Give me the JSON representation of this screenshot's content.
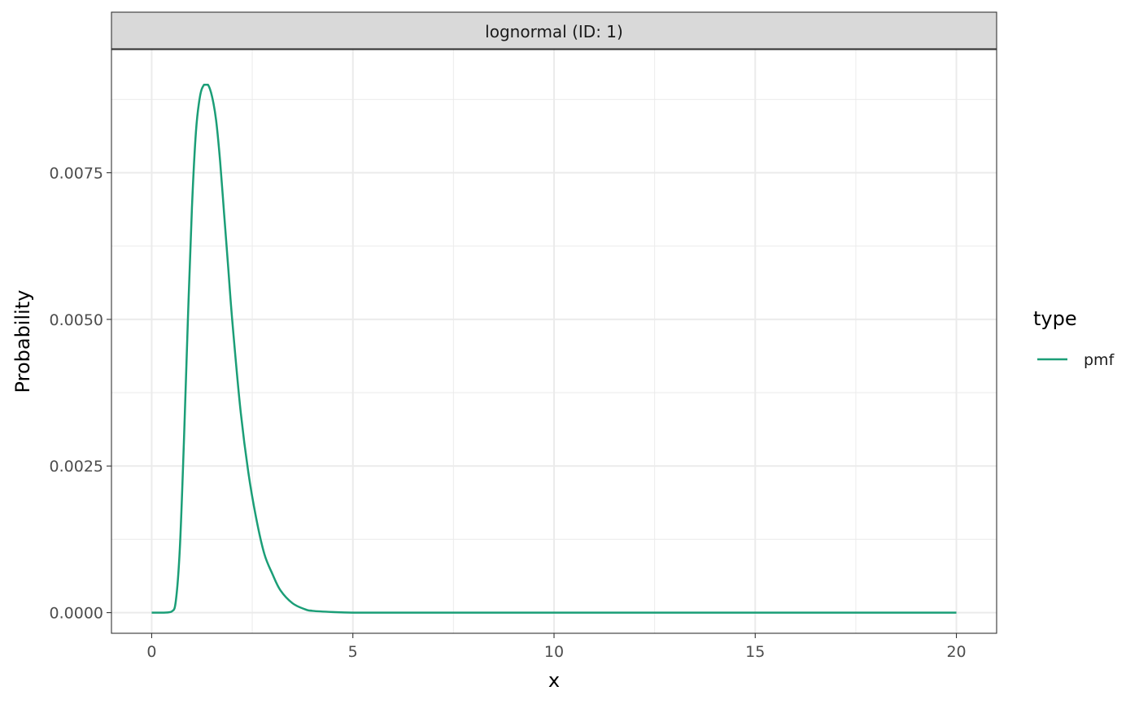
{
  "chart_data": {
    "type": "line",
    "facet_label": "lognormal (ID: 1)",
    "xlabel": "x",
    "ylabel": "Probability",
    "xlim": [
      -1,
      21
    ],
    "ylim": [
      -0.000352,
      0.0096
    ],
    "x_ticks": [
      0,
      5,
      10,
      15,
      20
    ],
    "x_tick_labels": [
      "0",
      "5",
      "10",
      "15",
      "20"
    ],
    "y_ticks": [
      0,
      0.0025,
      0.005,
      0.0075
    ],
    "y_tick_labels": [
      "0.0000",
      "0.0025",
      "0.0050",
      "0.0075"
    ],
    "x_minor": [
      2.5,
      7.5,
      12.5,
      17.5
    ],
    "y_minor": [
      0.00125,
      0.00375,
      0.00625,
      0.00875
    ],
    "grid": true,
    "legend": {
      "title": "type",
      "position": "right",
      "entries": [
        {
          "label": "pmf",
          "color": "#1b9e77"
        }
      ]
    },
    "series": [
      {
        "name": "pmf",
        "color": "#1b9e77",
        "x": [
          0,
          0.3,
          0.5,
          0.6,
          0.7,
          0.8,
          0.9,
          1.0,
          1.1,
          1.2,
          1.3,
          1.4,
          1.5,
          1.6,
          1.7,
          1.8,
          1.9,
          2.0,
          2.2,
          2.4,
          2.6,
          2.8,
          3.0,
          3.2,
          3.5,
          3.8,
          4.0,
          4.5,
          5.0,
          6,
          8,
          10,
          12,
          15,
          18,
          20
        ],
        "y": [
          0,
          0,
          2e-05,
          0.0002,
          0.0011,
          0.0029,
          0.005,
          0.0069,
          0.0082,
          0.0088,
          0.009,
          0.009,
          0.0088,
          0.0084,
          0.0077,
          0.0068,
          0.0059,
          0.005,
          0.0035,
          0.0024,
          0.0016,
          0.001,
          0.00066,
          0.00038,
          0.00016,
          6e-05,
          3e-05,
          1e-05,
          0,
          0,
          0,
          0,
          0,
          0,
          0,
          0
        ]
      }
    ]
  }
}
